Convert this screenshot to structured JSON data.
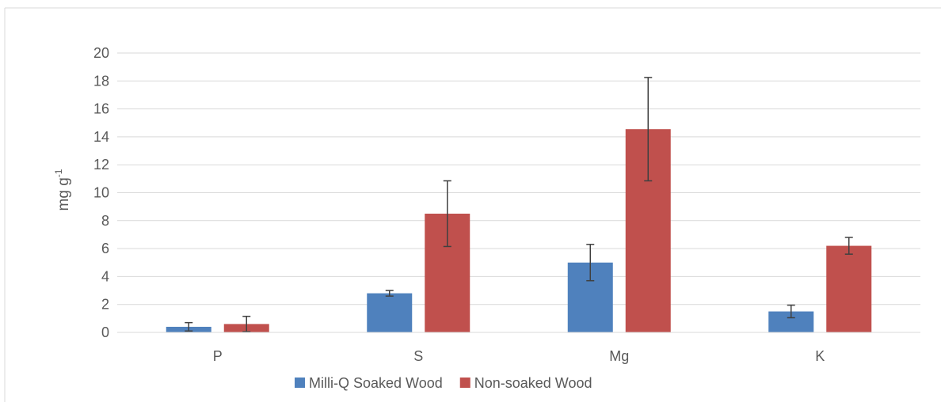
{
  "chart_data": {
    "type": "bar",
    "categories": [
      "P",
      "S",
      "Mg",
      "K"
    ],
    "series": [
      {
        "name": "Milli-Q Soaked Wood",
        "color": "#4f81bd",
        "values": [
          0.4,
          2.8,
          5.0,
          1.5
        ],
        "errors": [
          0.3,
          0.2,
          1.3,
          0.45
        ]
      },
      {
        "name": "Non-soaked Wood",
        "color": "#c0504d",
        "values": [
          0.6,
          8.5,
          14.55,
          6.2
        ],
        "errors": [
          0.55,
          2.35,
          3.7,
          0.6
        ]
      }
    ],
    "ylabel_main": "mg g",
    "ylabel_sup": "-1",
    "ylim": [
      0,
      20
    ],
    "yticks": [
      0,
      2,
      4,
      6,
      8,
      10,
      12,
      14,
      16,
      18,
      20
    ],
    "grid": true,
    "legend_position": "bottom"
  }
}
